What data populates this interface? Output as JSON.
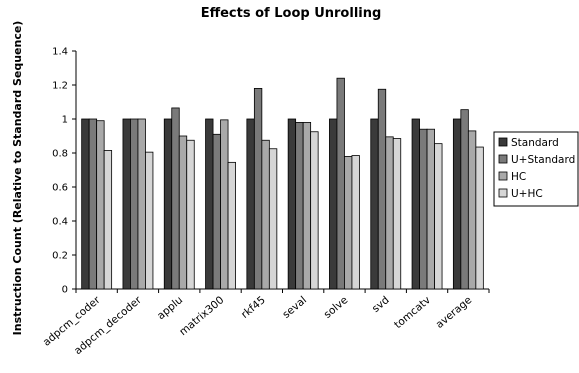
{
  "chart_data": {
    "type": "bar",
    "title": "Effects of Loop Unrolling",
    "xlabel": "",
    "ylabel": "Instruction Count (Relative to Standard Sequence)",
    "ylim": [
      0,
      1.4
    ],
    "yticks": [
      "0",
      "0.2",
      "0.4",
      "0.6",
      "0.8",
      "1",
      "1.2",
      "1.4"
    ],
    "grid": false,
    "legend_position": "right",
    "categories": [
      "adpcm_coder",
      "adpcm_decoder",
      "applu",
      "matrix300",
      "rkf45",
      "seval",
      "solve",
      "svd",
      "tomcatv",
      "average"
    ],
    "series": [
      {
        "name": "Standard",
        "color": "#3a3a3a",
        "values": [
          1.0,
          1.0,
          1.0,
          1.0,
          1.0,
          1.0,
          1.0,
          1.0,
          1.0,
          1.0
        ]
      },
      {
        "name": "U+Standard",
        "color": "#7a7a7a",
        "values": [
          1.0,
          1.0,
          1.065,
          0.91,
          1.18,
          0.98,
          1.24,
          1.175,
          0.94,
          1.055
        ]
      },
      {
        "name": "HC",
        "color": "#a9a9a9",
        "values": [
          0.99,
          1.0,
          0.9,
          0.995,
          0.875,
          0.98,
          0.78,
          0.895,
          0.94,
          0.93
        ]
      },
      {
        "name": "U+HC",
        "color": "#d6d6d6",
        "values": [
          0.815,
          0.805,
          0.875,
          0.745,
          0.825,
          0.925,
          0.785,
          0.885,
          0.855,
          0.835
        ]
      }
    ]
  }
}
